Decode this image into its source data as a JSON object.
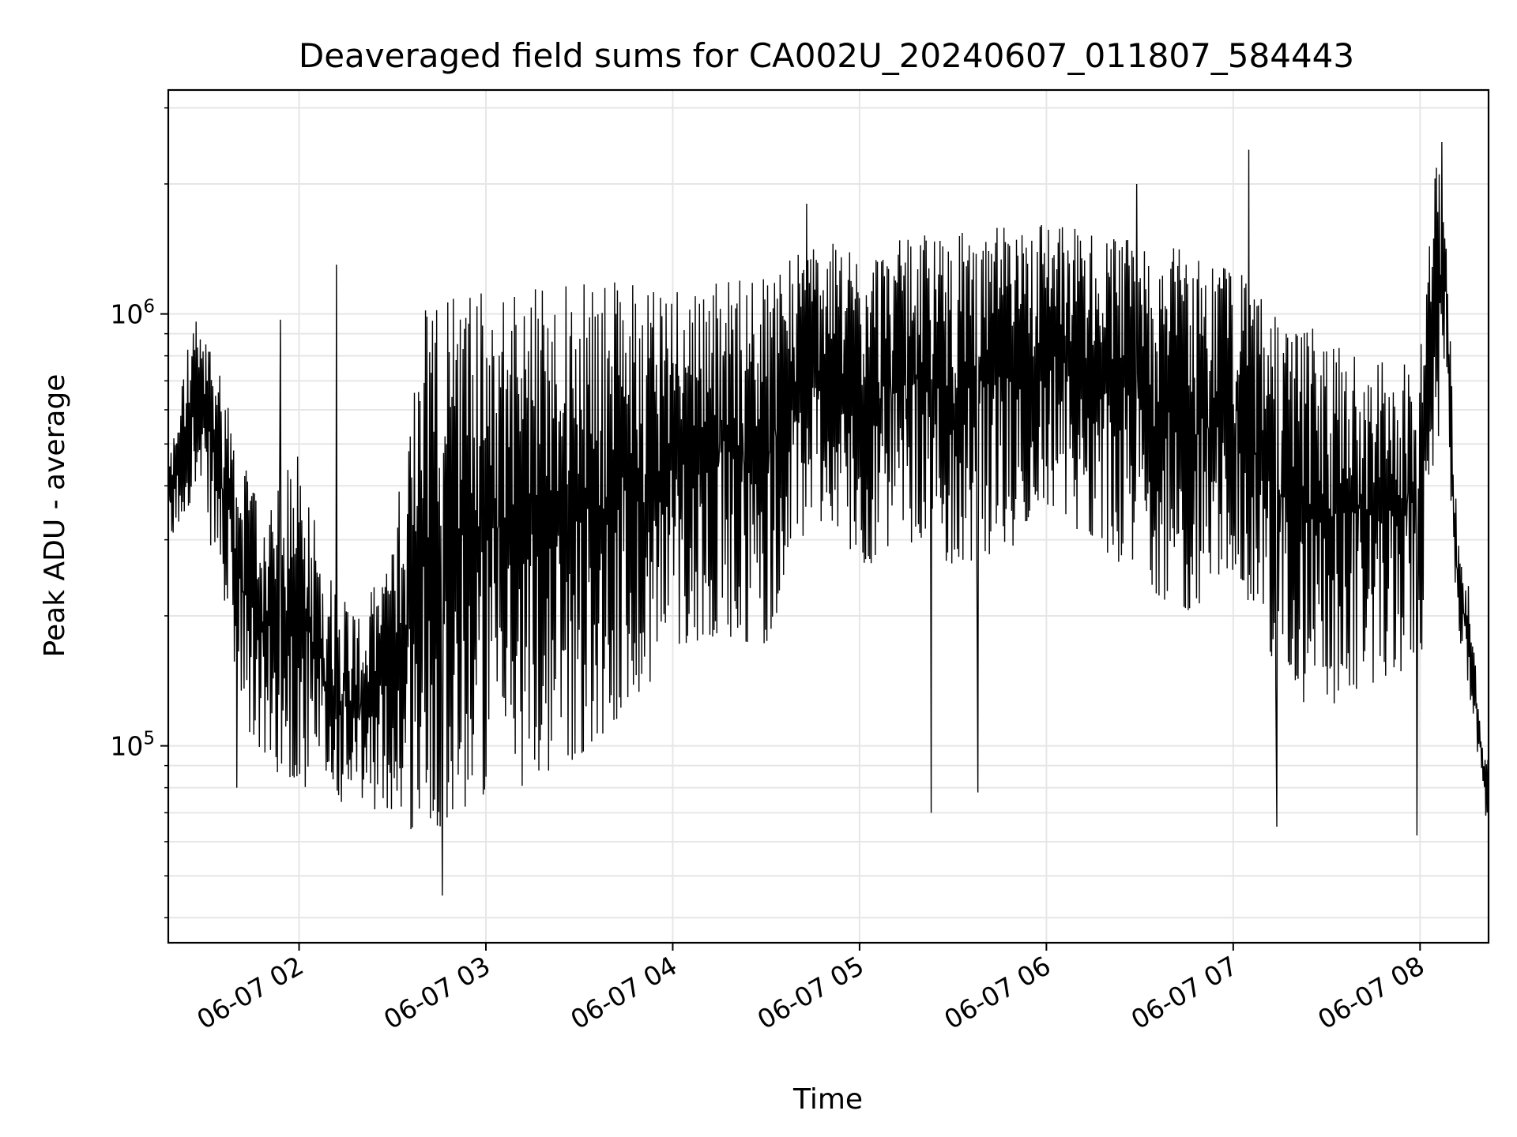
{
  "chart_data": {
    "type": "line",
    "title": "Deaveraged field sums for CA002U_20240607_011807_584443",
    "xlabel": "Time",
    "ylabel": "Peak ADU - average",
    "y_scale": "log",
    "ylim": [
      35000,
      3300000
    ],
    "xlim": [
      "2024-06-07 01:18",
      "2024-06-07 08:22"
    ],
    "grid": true,
    "line_color": "#000000",
    "grid_color": "#e6e6e6",
    "x_ticks": [
      {
        "t": "2024-06-07 02:00",
        "label": "06-07 02"
      },
      {
        "t": "2024-06-07 03:00",
        "label": "06-07 03"
      },
      {
        "t": "2024-06-07 04:00",
        "label": "06-07 04"
      },
      {
        "t": "2024-06-07 05:00",
        "label": "06-07 05"
      },
      {
        "t": "2024-06-07 06:00",
        "label": "06-07 06"
      },
      {
        "t": "2024-06-07 07:00",
        "label": "06-07 07"
      },
      {
        "t": "2024-06-07 08:00",
        "label": "06-07 08"
      }
    ],
    "y_ticks": [
      {
        "value": 100000,
        "base": "10",
        "exp": "5"
      },
      {
        "value": 1000000,
        "base": "10",
        "exp": "6"
      }
    ],
    "envelope": {
      "x": [
        "2024-06-07 01:18",
        "2024-06-07 01:26",
        "2024-06-07 01:34",
        "2024-06-07 01:42",
        "2024-06-07 01:50",
        "2024-06-07 02:00",
        "2024-06-07 02:10",
        "2024-06-07 02:20",
        "2024-06-07 02:30",
        "2024-06-07 02:40",
        "2024-06-07 02:50",
        "2024-06-07 03:00",
        "2024-06-07 03:10",
        "2024-06-07 03:20",
        "2024-06-07 03:30",
        "2024-06-07 03:40",
        "2024-06-07 03:50",
        "2024-06-07 04:00",
        "2024-06-07 04:15",
        "2024-06-07 04:30",
        "2024-06-07 04:45",
        "2024-06-07 05:00",
        "2024-06-07 05:15",
        "2024-06-07 05:30",
        "2024-06-07 05:45",
        "2024-06-07 06:00",
        "2024-06-07 06:15",
        "2024-06-07 06:30",
        "2024-06-07 06:45",
        "2024-06-07 07:00",
        "2024-06-07 07:15",
        "2024-06-07 07:30",
        "2024-06-07 07:45",
        "2024-06-07 08:00",
        "2024-06-07 08:04",
        "2024-06-07 08:08",
        "2024-06-07 08:12",
        "2024-06-07 08:16",
        "2024-06-07 08:20",
        "2024-06-07 08:22"
      ],
      "low": [
        280000,
        380000,
        260000,
        110000,
        90000,
        80000,
        75000,
        72000,
        70000,
        60000,
        70000,
        75000,
        80000,
        85000,
        95000,
        110000,
        130000,
        170000,
        180000,
        170000,
        350000,
        250000,
        300000,
        260000,
        270000,
        350000,
        300000,
        240000,
        200000,
        250000,
        130000,
        120000,
        140000,
        150000,
        300000,
        700000,
        180000,
        130000,
        80000,
        60000
      ],
      "high": [
        450000,
        1000000,
        800000,
        450000,
        350000,
        500000,
        250000,
        200000,
        300000,
        1100000,
        1200000,
        1150000,
        1150000,
        1200000,
        1200000,
        1200000,
        1200000,
        1200000,
        1200000,
        1250000,
        1500000,
        1400000,
        1500000,
        1550000,
        1600000,
        1700000,
        1550000,
        1500000,
        1400000,
        1300000,
        1000000,
        900000,
        750000,
        900000,
        2300000,
        2000000,
        300000,
        230000,
        100000,
        95000
      ]
    },
    "spikes": [
      {
        "x": "2024-06-07 01:40",
        "y": 80000
      },
      {
        "x": "2024-06-07 01:54",
        "y": 970000
      },
      {
        "x": "2024-06-07 02:12",
        "y": 1300000
      },
      {
        "x": "2024-06-07 02:46",
        "y": 45000
      },
      {
        "x": "2024-06-07 04:43",
        "y": 1800000
      },
      {
        "x": "2024-06-07 05:23",
        "y": 70000
      },
      {
        "x": "2024-06-07 05:38",
        "y": 78000
      },
      {
        "x": "2024-06-07 06:29",
        "y": 2000000
      },
      {
        "x": "2024-06-07 07:05",
        "y": 2400000
      },
      {
        "x": "2024-06-07 07:14",
        "y": 65000
      },
      {
        "x": "2024-06-07 07:59",
        "y": 62000
      },
      {
        "x": "2024-06-07 08:07",
        "y": 2500000
      }
    ]
  }
}
